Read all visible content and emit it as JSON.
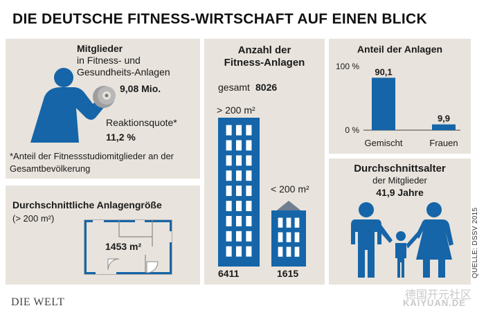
{
  "title": "DIE DEUTSCHE FITNESS-WIRTSCHAFT AUF EINEN BLICK",
  "colors": {
    "panel": "#e8e3dc",
    "blue": "#1565a8",
    "dark": "#111111"
  },
  "members": {
    "heading": "Mitglieder",
    "subtitle_line1": "in Fitness- und",
    "subtitle_line2": "Gesundheits-Anlagen",
    "value": "9,08 Mio.",
    "quota_label": "Reaktionsquote*",
    "quota_value": "11,2 %",
    "footnote_line1": "*Anteil der Fitnessstudiomitglieder an der",
    "footnote_line2": "Gesamtbevölkerung",
    "icon": "person-lifting-dumbbell-icon"
  },
  "size": {
    "heading": "Durchschnittliche Anlagengröße",
    "unit": "(> 200 m²)",
    "value": "1453 m²",
    "icon": "floor-plan-icon"
  },
  "facilities": {
    "heading_line1": "Anzahl der",
    "heading_line2": "Fitness-Anlagen",
    "total_label": "gesamt",
    "total_value": "8026",
    "large_label": "> 200 m²",
    "large_value": "6411",
    "small_label": "< 200 m²",
    "small_value": "1615",
    "icon": "building-icon"
  },
  "chart_data": {
    "type": "bar",
    "title": "Anteil der Anlagen",
    "categories": [
      "Gemischt",
      "Frauen"
    ],
    "values": [
      90.1,
      9.9
    ],
    "value_labels": [
      "90,1",
      "9,9"
    ],
    "ylim": [
      0,
      100
    ],
    "yticks": [
      "0 %",
      "100 %"
    ],
    "grid": false,
    "color": "#1565a8"
  },
  "age": {
    "heading": "Durchschnittsalter",
    "subtitle": "der Mitglieder",
    "value": "41,9 Jahre",
    "icon": "family-icon"
  },
  "source": "QUELLE: DSSV 2015",
  "logo": "DIE WELT",
  "watermark_line1": "德国开元社区",
  "watermark_line2": "KAIYUAN.DE"
}
